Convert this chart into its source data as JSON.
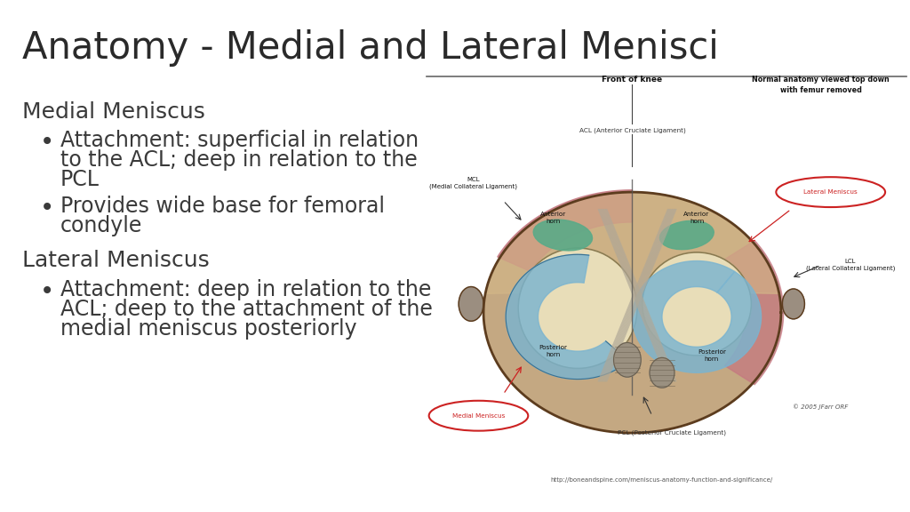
{
  "title": "Anatomy - Medial and Lateral Menisci",
  "title_fontsize": 30,
  "title_color": "#2a2a2a",
  "bg_color": "#ffffff",
  "text_color": "#3a3a3a",
  "section1_header": "Medial Meniscus",
  "bullet1a": "Attachment: superficial in relation",
  "bullet1b": "to the ACL; deep in relation to the",
  "bullet1c": "PCL",
  "bullet2a": "Provides wide base for femoral",
  "bullet2b": "condyle",
  "section2_header": "Lateral Meniscus",
  "bullet3a": "Attachment: deep in relation to the",
  "bullet3b": "ACL; deep to the attachment of the",
  "bullet3c": "medial meniscus posteriorly",
  "body_fontsize": 17,
  "header_fontsize": 18,
  "url_text": "http://boneandspine.com/meniscus-anatomy-function-and-significance/",
  "divider_color": "#666666"
}
